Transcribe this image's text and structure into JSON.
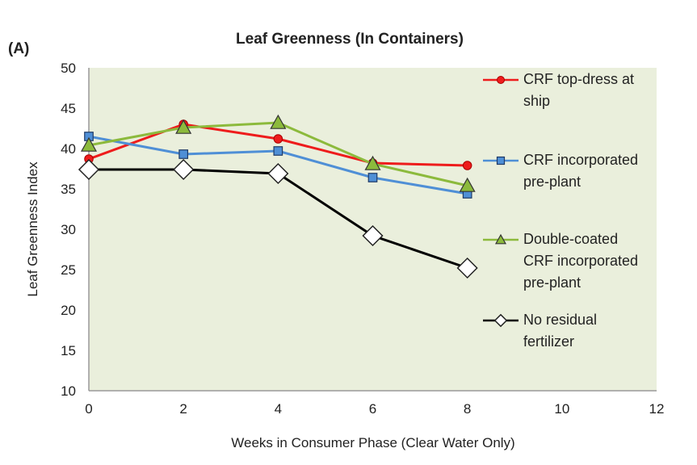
{
  "chart_data": {
    "type": "line",
    "panel_label": "(A)",
    "title": "Leaf Greenness (In Containers)",
    "xlabel": "Weeks in Consumer Phase (Clear Water Only)",
    "ylabel": "Leaf Greenness Index",
    "xlim": [
      0,
      12
    ],
    "ylim": [
      10,
      50
    ],
    "xticks": [
      0,
      2,
      4,
      6,
      8,
      10,
      12
    ],
    "yticks": [
      10,
      15,
      20,
      25,
      30,
      35,
      40,
      45,
      50
    ],
    "grid": false,
    "legend_position": "right-inside",
    "plot_background": "#eaefdc",
    "x": [
      0,
      2,
      4,
      6,
      8
    ],
    "series": [
      {
        "name": "CRF top-dress at ship",
        "legend_lines": [
          "CRF top-dress at",
          "ship"
        ],
        "color": "#ee1c1c",
        "marker": "circle",
        "marker_fill": "#ee1c1c",
        "values": [
          38.7,
          43.0,
          41.2,
          38.2,
          37.9
        ]
      },
      {
        "name": "CRF incorporated pre-plant",
        "legend_lines": [
          "CRF incorporated",
          "pre-plant"
        ],
        "color": "#4f8fd6",
        "marker": "square",
        "marker_fill": "#4f8fd6",
        "values": [
          41.5,
          39.3,
          39.7,
          36.4,
          34.4
        ]
      },
      {
        "name": "Double-coated CRF incorporated pre-plant",
        "legend_lines": [
          "Double-coated",
          "CRF incorporated",
          "pre-plant"
        ],
        "color": "#8cba3c",
        "marker": "triangle",
        "marker_fill": "#8cba3c",
        "values": [
          40.4,
          42.6,
          43.2,
          38.1,
          35.4
        ]
      },
      {
        "name": "No residual fertilizer",
        "legend_lines": [
          "No residual",
          "fertilizer"
        ],
        "color": "#000000",
        "marker": "diamond",
        "marker_fill": "#ffffff",
        "values": [
          37.4,
          37.4,
          36.9,
          29.2,
          25.2
        ]
      }
    ]
  }
}
